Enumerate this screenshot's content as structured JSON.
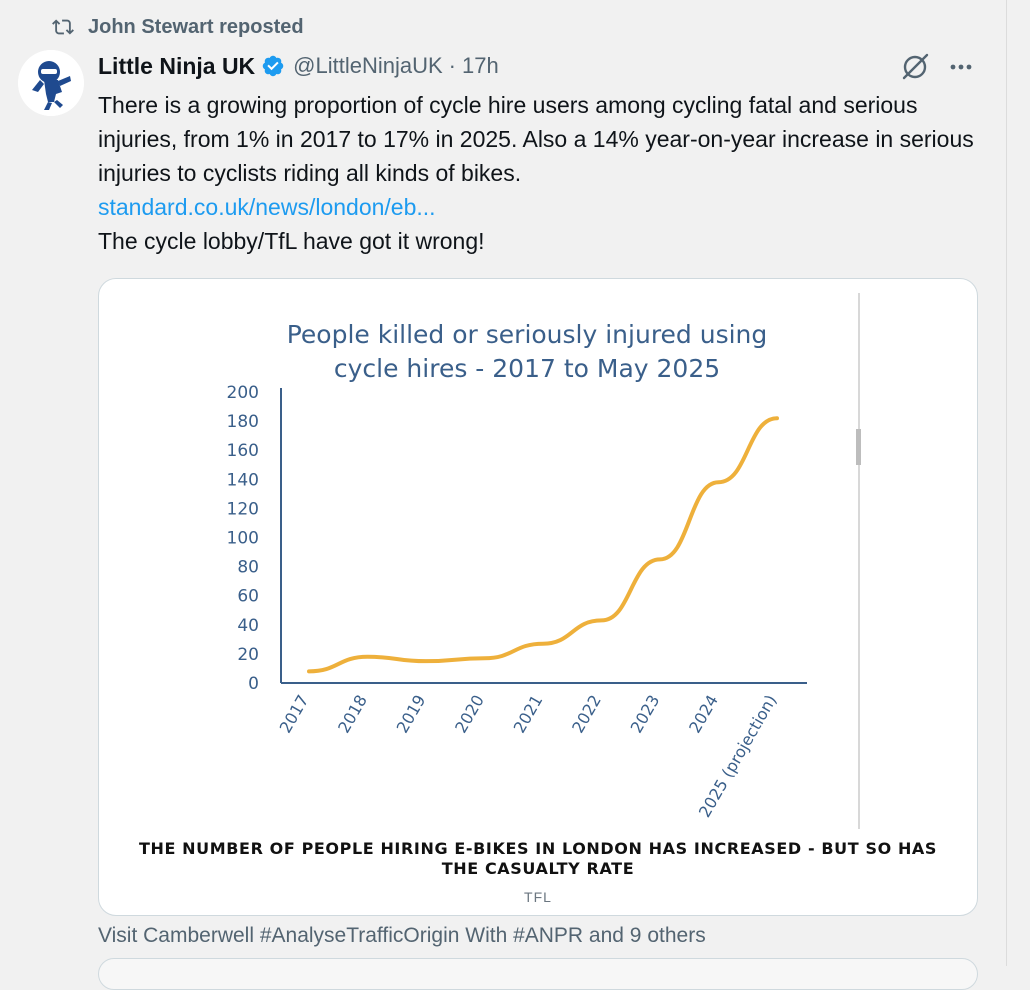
{
  "repost": {
    "text": "John Stewart reposted"
  },
  "author": {
    "name": "Little Ninja UK",
    "handle": "@LittleNinjaUK",
    "separator": "·",
    "time": "17h"
  },
  "tweet": {
    "text": "There is a growing proportion of cycle hire users among cycling fatal and serious injuries, from 1% in 2017 to 17% in 2025. Also a 14% year-on-year increase in serious injuries to cyclists riding all kinds of bikes.",
    "link": "standard.co.uk/news/london/eb...",
    "tail": "The cycle lobby/TfL have got it wrong!"
  },
  "card": {
    "caption": "THE NUMBER OF PEOPLE HIRING E-BIKES IN LONDON HAS INCREASED - BUT SO HAS THE CASUALTY RATE",
    "source": "TFL"
  },
  "footer": {
    "text": "Visit Camberwell #AnalyseTrafficOrigin With #ANPR and 9 others"
  },
  "colors": {
    "line": "#eeb03b",
    "title": "#3a5f8a",
    "axis": "#3a5f8a",
    "link": "#1d9bf0",
    "verified": "#1d9bf0"
  },
  "icons": {
    "repost": "repost-icon",
    "verified": "verified-badge-icon",
    "grok": "grok-icon",
    "more": "more-icon"
  },
  "chart_data": {
    "type": "line",
    "title": "People killed or seriously injured using cycle hires - 2017 to May 2025",
    "categories": [
      "2017",
      "2018",
      "2019",
      "2020",
      "2021",
      "2022",
      "2023",
      "2024",
      "2025 (projection)"
    ],
    "series": [
      {
        "values": [
          8,
          18,
          15,
          17,
          27,
          43,
          85,
          138,
          182
        ]
      }
    ],
    "yticks": [
      0,
      20,
      40,
      60,
      80,
      100,
      120,
      140,
      160,
      180,
      200
    ],
    "ylim": [
      0,
      200
    ],
    "grid": false,
    "legend": "none"
  }
}
